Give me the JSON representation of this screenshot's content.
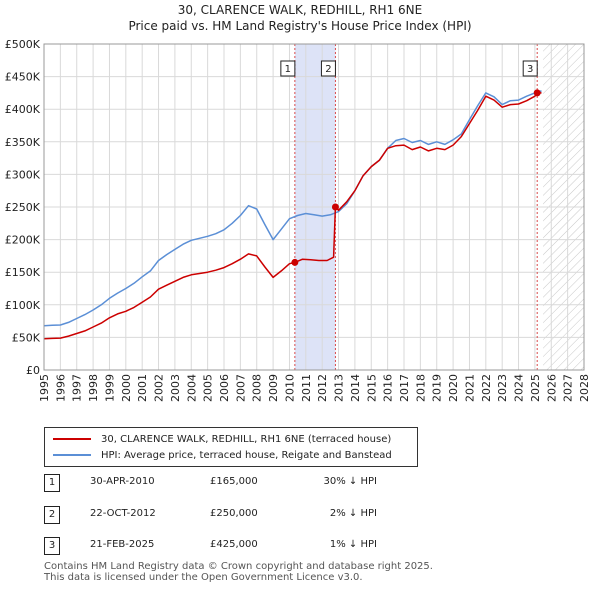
{
  "title_line1": "30, CLARENCE WALK, REDHILL, RH1 6NE",
  "title_line2": "Price paid vs. HM Land Registry's House Price Index (HPI)",
  "chart_data": {
    "type": "line",
    "title": "Price paid vs. HM Land Registry's House Price Index (HPI)",
    "xlabel": "",
    "ylabel": "",
    "xlim": [
      1995,
      2028
    ],
    "ylim": [
      0,
      500000
    ],
    "x_ticks": [
      1995,
      1996,
      1997,
      1998,
      1999,
      2000,
      2001,
      2002,
      2003,
      2004,
      2005,
      2006,
      2007,
      2008,
      2009,
      2010,
      2011,
      2012,
      2013,
      2014,
      2015,
      2016,
      2017,
      2018,
      2019,
      2020,
      2021,
      2022,
      2023,
      2024,
      2025,
      2026,
      2027,
      2028
    ],
    "y_ticks": [
      0,
      50000,
      100000,
      150000,
      200000,
      250000,
      300000,
      350000,
      400000,
      450000,
      500000
    ],
    "y_tick_labels": [
      "£0",
      "£50K",
      "£100K",
      "£150K",
      "£200K",
      "£250K",
      "£300K",
      "£350K",
      "£400K",
      "£450K",
      "£500K"
    ],
    "grid": true,
    "shaded_periods": [
      {
        "from": 2010.33,
        "to": 2012.81,
        "color": "#dde3f7"
      }
    ],
    "hatched_from": 2025.5,
    "series": [
      {
        "name": "30, CLARENCE WALK, REDHILL, RH1 6NE (terraced house)",
        "color": "#cc0000",
        "x": [
          1995.0,
          1995.5,
          1996.0,
          1996.5,
          1997.0,
          1997.5,
          1998.0,
          1998.5,
          1999.0,
          1999.5,
          2000.0,
          2000.5,
          2001.0,
          2001.5,
          2002.0,
          2002.5,
          2003.0,
          2003.5,
          2004.0,
          2004.5,
          2005.0,
          2005.5,
          2006.0,
          2006.5,
          2007.0,
          2007.5,
          2008.0,
          2008.5,
          2009.0,
          2009.5,
          2010.0,
          2010.33,
          2010.8,
          2011.3,
          2011.8,
          2012.3,
          2012.7,
          2012.81,
          2013.0,
          2013.5,
          2014.0,
          2014.5,
          2015.0,
          2015.5,
          2016.0,
          2016.5,
          2017.0,
          2017.5,
          2018.0,
          2018.5,
          2019.0,
          2019.5,
          2020.0,
          2020.5,
          2021.0,
          2021.5,
          2022.0,
          2022.5,
          2023.0,
          2023.5,
          2024.0,
          2024.5,
          2025.0,
          2025.14,
          2025.4
        ],
        "values": [
          48000,
          48500,
          49000,
          52000,
          56000,
          60000,
          66000,
          72000,
          80000,
          86000,
          90000,
          96000,
          104000,
          112000,
          124000,
          130000,
          136000,
          142000,
          146000,
          148000,
          150000,
          153000,
          157000,
          163000,
          170000,
          178000,
          175000,
          158000,
          142000,
          152000,
          163000,
          165000,
          170000,
          169000,
          168000,
          168000,
          173000,
          250000,
          245000,
          258000,
          275000,
          298000,
          312000,
          322000,
          340000,
          344000,
          345000,
          338000,
          342000,
          336000,
          340000,
          338000,
          345000,
          358000,
          378000,
          398000,
          420000,
          414000,
          403000,
          407000,
          408000,
          413000,
          420000,
          425000,
          425000
        ]
      },
      {
        "name": "HPI: Average price, terraced house, Reigate and Banstead",
        "color": "#5b8fd6",
        "x": [
          1995.0,
          1995.5,
          1996.0,
          1996.5,
          1997.0,
          1997.5,
          1998.0,
          1998.5,
          1999.0,
          1999.5,
          2000.0,
          2000.5,
          2001.0,
          2001.5,
          2002.0,
          2002.5,
          2003.0,
          2003.5,
          2004.0,
          2004.5,
          2005.0,
          2005.5,
          2006.0,
          2006.5,
          2007.0,
          2007.5,
          2008.0,
          2008.5,
          2009.0,
          2009.5,
          2010.0,
          2010.5,
          2011.0,
          2011.5,
          2012.0,
          2012.5,
          2013.0,
          2013.5,
          2014.0,
          2014.5,
          2015.0,
          2015.5,
          2016.0,
          2016.5,
          2017.0,
          2017.5,
          2018.0,
          2018.5,
          2019.0,
          2019.5,
          2020.0,
          2020.5,
          2021.0,
          2021.5,
          2022.0,
          2022.5,
          2023.0,
          2023.5,
          2024.0,
          2024.5,
          2025.0,
          2025.4
        ],
        "values": [
          68000,
          68500,
          69000,
          73000,
          79000,
          85000,
          92000,
          100000,
          110000,
          118000,
          125000,
          133000,
          143000,
          152000,
          168000,
          177000,
          185000,
          193000,
          199000,
          202000,
          205000,
          209000,
          215000,
          225000,
          237000,
          252000,
          247000,
          223000,
          200000,
          216000,
          232000,
          237000,
          240000,
          238000,
          236000,
          238000,
          243000,
          255000,
          275000,
          298000,
          312000,
          322000,
          340000,
          352000,
          355000,
          349000,
          352000,
          346000,
          350000,
          346000,
          353000,
          362000,
          384000,
          405000,
          425000,
          419000,
          407000,
          413000,
          414000,
          420000,
          425000,
          428000
        ]
      }
    ],
    "markers": [
      {
        "label": "1",
        "x": 2010.33,
        "value": 165000
      },
      {
        "label": "2",
        "x": 2012.81,
        "value": 250000
      },
      {
        "label": "3",
        "x": 2025.14,
        "value": 425000
      }
    ]
  },
  "legend": {
    "items": [
      {
        "label": "30, CLARENCE WALK, REDHILL, RH1 6NE (terraced house)",
        "color": "#cc0000"
      },
      {
        "label": "HPI: Average price, terraced house, Reigate and Banstead",
        "color": "#5b8fd6"
      }
    ]
  },
  "transactions": [
    {
      "num": "1",
      "date": "30-APR-2010",
      "price": "£165,000",
      "hpi": "30% ↓ HPI"
    },
    {
      "num": "2",
      "date": "22-OCT-2012",
      "price": "£250,000",
      "hpi": "2% ↓ HPI"
    },
    {
      "num": "3",
      "date": "21-FEB-2025",
      "price": "£425,000",
      "hpi": "1% ↓ HPI"
    }
  ],
  "footer": {
    "line1": "Contains HM Land Registry data © Crown copyright and database right 2025.",
    "line2": "This data is licensed under the Open Government Licence v3.0."
  }
}
